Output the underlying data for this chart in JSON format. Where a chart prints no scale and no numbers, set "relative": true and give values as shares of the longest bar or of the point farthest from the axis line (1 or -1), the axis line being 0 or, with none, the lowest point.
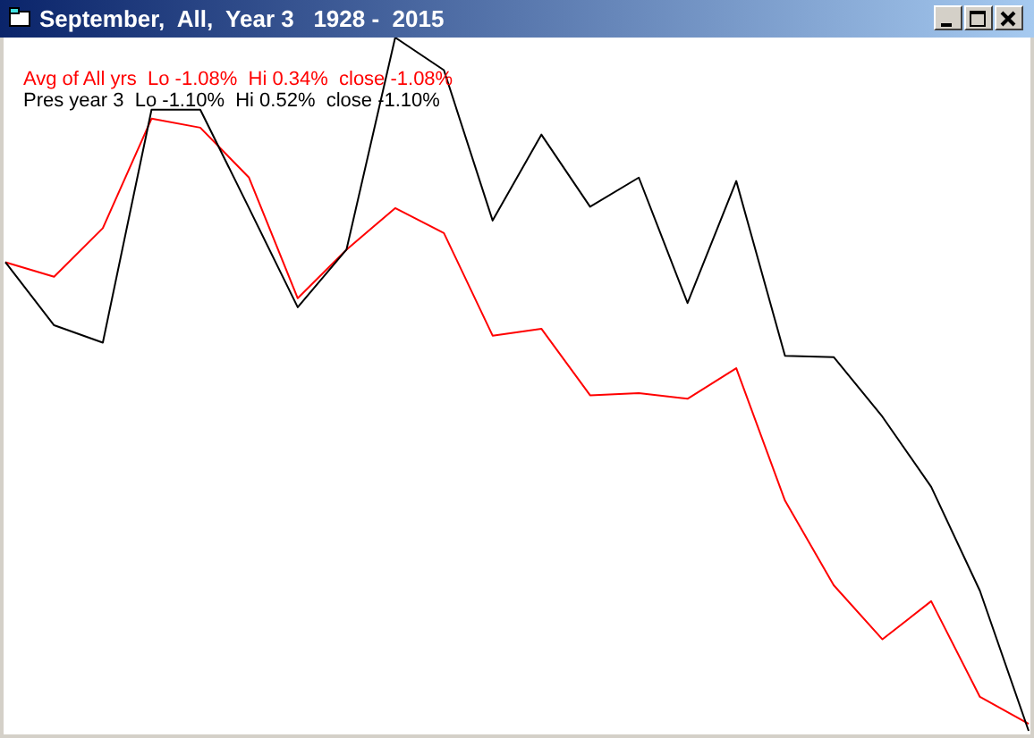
{
  "chart_data": {
    "type": "line",
    "title": "September,  All,  Year 3   1928 -  2015",
    "relative": true,
    "legend": "top left",
    "marker": "none",
    "grid": false,
    "categories": [
      null,
      null,
      null,
      null,
      null,
      null,
      null,
      null,
      null,
      null,
      null,
      null,
      null,
      null,
      null,
      null,
      null,
      null,
      null,
      null,
      null,
      null
    ],
    "series": [
      {
        "name": "Avg of All yrs  Lo -1.08%  Hi 0.34%  close -1.08%",
        "color": "#ff0000",
        "values": [
          0.676,
          0.655,
          0.725,
          0.883,
          0.87,
          0.798,
          0.624,
          0.694,
          0.754,
          0.718,
          0.57,
          0.58,
          0.484,
          0.487,
          0.479,
          0.523,
          0.332,
          0.21,
          0.132,
          0.187,
          0.049,
          0.01
        ]
      },
      {
        "name": "Pres year 3  Lo -1.10%  Hi 0.52%  close -1.10%",
        "color": "#000000",
        "values": [
          0.676,
          0.585,
          0.56,
          0.896,
          0.896,
          0.754,
          0.611,
          0.694,
          1,
          0.953,
          0.736,
          0.86,
          0.756,
          0.798,
          0.617,
          0.793,
          0.541,
          0.539,
          0.453,
          0.352,
          0.202,
          0
        ]
      }
    ]
  }
}
